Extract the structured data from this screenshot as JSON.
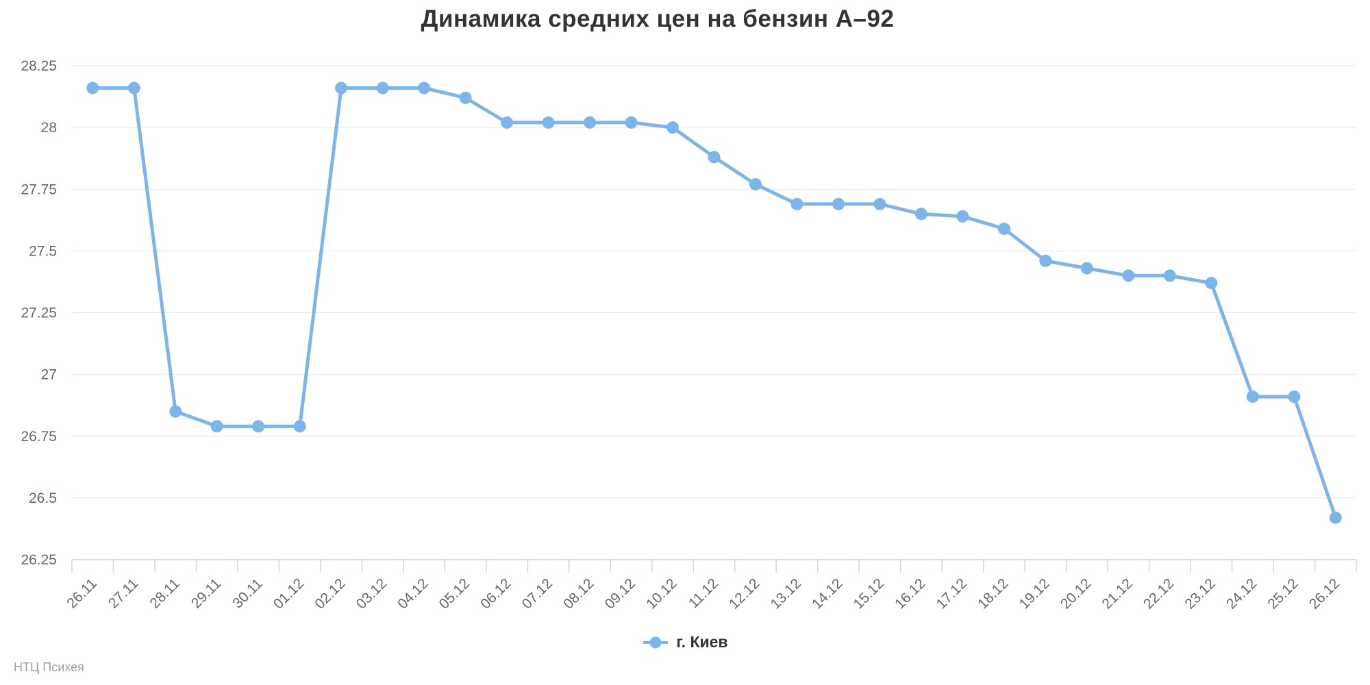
{
  "chart_data": {
    "type": "line",
    "title": "Динамика средних цен на бензин А–92",
    "categories": [
      "26.11",
      "27.11",
      "28.11",
      "29.11",
      "30.11",
      "01.12",
      "02.12",
      "03.12",
      "04.12",
      "05.12",
      "06.12",
      "07.12",
      "08.12",
      "09.12",
      "10.12",
      "11.12",
      "12.12",
      "13.12",
      "14.12",
      "15.12",
      "16.12",
      "17.12",
      "18.12",
      "19.12",
      "20.12",
      "21.12",
      "22.12",
      "23.12",
      "24.12",
      "25.12",
      "26.12"
    ],
    "series": [
      {
        "name": "г. Киев",
        "color": "#7cb5ec",
        "values": [
          28.16,
          28.16,
          26.85,
          26.79,
          26.79,
          26.79,
          28.16,
          28.16,
          28.16,
          28.12,
          28.02,
          28.02,
          28.02,
          28.02,
          28.0,
          27.88,
          27.77,
          27.69,
          27.69,
          27.69,
          27.65,
          27.64,
          27.59,
          27.46,
          27.43,
          27.4,
          27.4,
          27.37,
          26.91,
          26.91,
          26.42
        ]
      }
    ],
    "xlabel": "",
    "ylabel": "",
    "ylim": [
      26.25,
      28.25
    ],
    "ytick_step": 0.25,
    "ytick_labels": [
      "28.25",
      "28",
      "27.75",
      "27.5",
      "27.25",
      "27",
      "26.75",
      "26.5",
      "26.25"
    ],
    "x_label_rotation": -45,
    "grid": "horizontal-only",
    "legend_position": "bottom-center"
  },
  "watermark": {
    "text": "НТЦ Психея"
  },
  "colors": {
    "line": "#7cb5ec",
    "grid": "#e6e6e6",
    "axis": "#ccd6eb",
    "tick_labels": "#666666",
    "title": "#333333",
    "legend_text": "#333333",
    "watermark": "#9e9e9e",
    "background": "#ffffff"
  }
}
